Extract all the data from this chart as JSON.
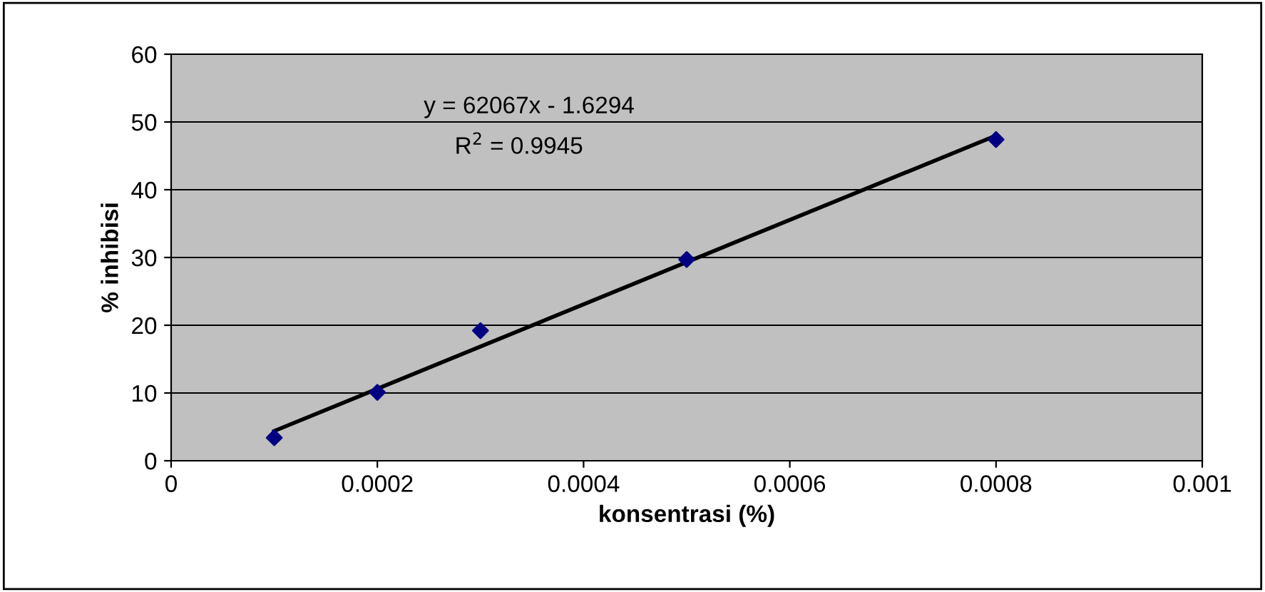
{
  "chart_data": {
    "type": "scatter",
    "xlabel": "konsentrasi (%)",
    "ylabel": "% inhibisi",
    "annotations": [
      "y = 62067x - 1.6294",
      "R$^{2}$ = 0.9945"
    ],
    "series": [
      {
        "color": "#000080",
        "marker": "diamond",
        "x": [
          0.0001,
          0.0002,
          0.0003,
          0.0005,
          0.0008
        ],
        "values": [
          3.4,
          10.1,
          19.2,
          29.7,
          47.4
        ]
      },
      {
        "type": "line",
        "color": "#000000",
        "marker": "none",
        "line_style": "solid",
        "x": [
          0.0001,
          0.0008
        ],
        "values": [
          4.4,
          48.0
        ]
      }
    ],
    "xlim": [
      0,
      0.001
    ],
    "xticks": [
      0,
      0.0002,
      0.0004,
      0.0006,
      0.0008,
      0.001
    ],
    "ylim": [
      0,
      60
    ],
    "yticks": [
      0,
      10,
      20,
      30,
      40,
      50,
      60
    ],
    "grid": "y",
    "legend": false
  }
}
